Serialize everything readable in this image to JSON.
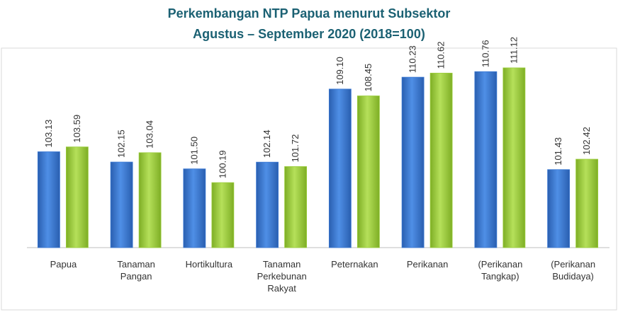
{
  "chart_data": {
    "type": "bar",
    "title": "Perkembangan NTP Papua menurut Subsektor",
    "subtitle": "Agustus – September 2020 (2018=100)",
    "categories": [
      "Papua",
      "Tanaman\nPangan",
      "Hortikultura",
      "Tanaman\nPerkebunan\nRakyat",
      "Peternakan",
      "Perikanan",
      "(Perikanan\nTangkap)",
      "(Perikanan\nBudidaya)"
    ],
    "series": [
      {
        "color": "#3a78d4",
        "values": [
          103.13,
          102.15,
          101.5,
          102.14,
          109.1,
          110.23,
          110.76,
          101.43
        ],
        "value_labels": [
          "103.13",
          "102.15",
          "101.50",
          "102.14",
          "109.10",
          "110.23",
          "110.76",
          "101.43"
        ]
      },
      {
        "color": "#9acd3a",
        "values": [
          103.59,
          103.04,
          100.19,
          101.72,
          108.45,
          110.62,
          111.12,
          102.42
        ],
        "value_labels": [
          "103.59",
          "103.04",
          "100.19",
          "101.72",
          "108.45",
          "110.62",
          "111.12",
          "102.42"
        ]
      }
    ],
    "ylim": [
      94,
      113
    ]
  }
}
